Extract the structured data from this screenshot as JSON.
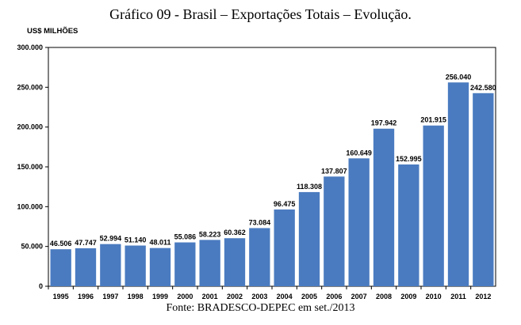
{
  "chart_data": {
    "type": "bar",
    "title": "Gráfico 09 - Brasil – Exportações Totais – Evolução.",
    "ylabel": "US$ MILHÕES",
    "xlabel": "",
    "categories": [
      "1995",
      "1996",
      "1997",
      "1998",
      "1999",
      "2000",
      "2001",
      "2002",
      "2003",
      "2004",
      "2005",
      "2006",
      "2007",
      "2008",
      "2009",
      "2010",
      "2011",
      "2012"
    ],
    "values": [
      46506,
      47747,
      52994,
      51140,
      48011,
      55086,
      58223,
      60362,
      73084,
      96475,
      118308,
      137807,
      160649,
      197942,
      152995,
      201915,
      256040,
      242580
    ],
    "value_labels": [
      "46.506",
      "47.747",
      "52.994",
      "51.140",
      "48.011",
      "55.086",
      "58.223",
      "60.362",
      "73.084",
      "96.475",
      "118.308",
      "137.807",
      "160.649",
      "197.942",
      "152.995",
      "201.915",
      "256.040",
      "242.580"
    ],
    "ylim": [
      0,
      300000
    ],
    "yticks": [
      0,
      50000,
      100000,
      150000,
      200000,
      250000,
      300000
    ],
    "ytick_labels": [
      "0",
      "50.000",
      "100.000",
      "150.000",
      "200.000",
      "250.000",
      "300.000"
    ],
    "bar_color": "#4a7bc0",
    "grid": false,
    "source": "Fonte: BRADESCO-DEPEC em set./2013"
  }
}
